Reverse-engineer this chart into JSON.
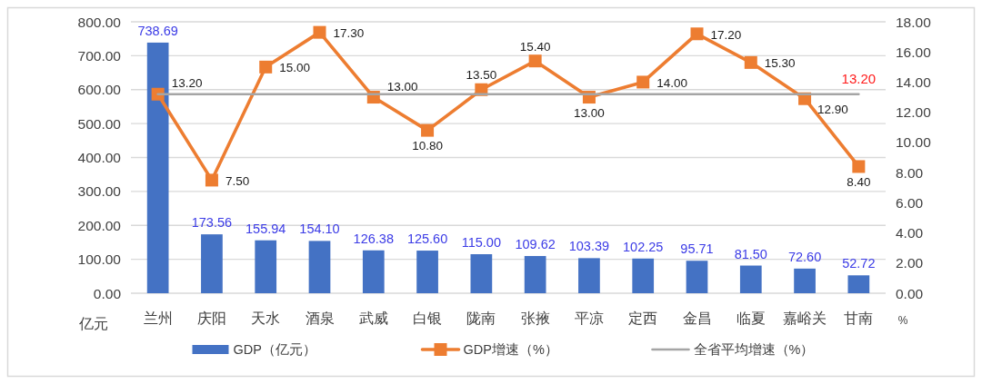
{
  "chart_data": {
    "type": "bar",
    "categories": [
      "兰州",
      "庆阳",
      "天水",
      "酒泉",
      "武威",
      "白银",
      "陇南",
      "张掖",
      "平凉",
      "定西",
      "金昌",
      "临夏",
      "嘉峪关",
      "甘南"
    ],
    "series": [
      {
        "name": "GDP（亿元）",
        "color": "#4472c4",
        "values": [
          738.69,
          173.56,
          155.94,
          154.1,
          126.38,
          125.6,
          115.0,
          109.62,
          103.39,
          102.25,
          95.71,
          81.5,
          72.6,
          52.72
        ],
        "value_labels": [
          "738.69",
          "173.56",
          "155.94",
          "154.10",
          "126.38",
          "125.60",
          "115.00",
          "109.62",
          "103.39",
          "102.25",
          "95.71",
          "81.50",
          "72.60",
          "52.72"
        ]
      },
      {
        "name": "GDP增速（%）",
        "type": "line",
        "axis": "y2",
        "color": "#ed7d31",
        "marker": "square",
        "values": [
          13.2,
          7.5,
          15.0,
          17.3,
          13.0,
          10.8,
          13.5,
          15.4,
          13.0,
          14.0,
          17.2,
          15.3,
          12.9,
          8.4
        ],
        "value_labels": [
          "13.20",
          "7.50",
          "15.00",
          "17.30",
          "13.00",
          "10.80",
          "13.50",
          "15.40",
          "13.00",
          "14.00",
          "17.20",
          "15.30",
          "12.90",
          "8.40"
        ]
      },
      {
        "name": "全省平均增速（%）",
        "type": "line",
        "axis": "y2",
        "color": "#a5a5a5",
        "marker": "none",
        "values": [
          13.2,
          13.2,
          13.2,
          13.2,
          13.2,
          13.2,
          13.2,
          13.2,
          13.2,
          13.2,
          13.2,
          13.2,
          13.2,
          13.2
        ],
        "value_labels": [
          null,
          null,
          null,
          null,
          null,
          null,
          null,
          null,
          null,
          null,
          null,
          null,
          null,
          "13.20"
        ]
      }
    ],
    "ylabel": "亿元",
    "y2label": "%",
    "ylim": [
      0,
      800
    ],
    "yticks": [
      {
        "value": 0,
        "label": "0.00"
      },
      {
        "value": 100,
        "label": "100.00"
      },
      {
        "value": 200,
        "label": "200.00"
      },
      {
        "value": 300,
        "label": "300.00"
      },
      {
        "value": 400,
        "label": "400.00"
      },
      {
        "value": 500,
        "label": "500.00"
      },
      {
        "value": 600,
        "label": "600.00"
      },
      {
        "value": 700,
        "label": "700.00"
      },
      {
        "value": 800,
        "label": "800.00"
      }
    ],
    "y2lim": [
      0,
      18
    ],
    "y2ticks": [
      {
        "value": 0,
        "label": "0.00"
      },
      {
        "value": 2,
        "label": "2.00"
      },
      {
        "value": 4,
        "label": "4.00"
      },
      {
        "value": 6,
        "label": "6.00"
      },
      {
        "value": 8,
        "label": "8.00"
      },
      {
        "value": 10,
        "label": "10.00"
      },
      {
        "value": 12,
        "label": "12.00"
      },
      {
        "value": 14,
        "label": "14.00"
      },
      {
        "value": 16,
        "label": "16.00"
      },
      {
        "value": 18,
        "label": "18.00"
      }
    ],
    "grid": "y",
    "legend": "bottom"
  }
}
